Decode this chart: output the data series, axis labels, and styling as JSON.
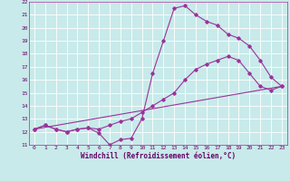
{
  "xlabel": "Windchill (Refroidissement éolien,°C)",
  "bg_color": "#c8eaea",
  "grid_color": "#ffffff",
  "line_color": "#993399",
  "xlim": [
    -0.5,
    23.5
  ],
  "ylim": [
    11,
    22
  ],
  "xticks": [
    0,
    1,
    2,
    3,
    4,
    5,
    6,
    7,
    8,
    9,
    10,
    11,
    12,
    13,
    14,
    15,
    16,
    17,
    18,
    19,
    20,
    21,
    22,
    23
  ],
  "yticks": [
    11,
    12,
    13,
    14,
    15,
    16,
    17,
    18,
    19,
    20,
    21,
    22
  ],
  "line1_x": [
    0,
    1,
    2,
    3,
    4,
    5,
    6,
    7,
    8,
    9,
    10,
    11,
    12,
    13,
    14,
    15,
    16,
    17,
    18,
    19,
    20,
    21,
    22,
    23
  ],
  "line1_y": [
    12.2,
    12.5,
    12.2,
    12.0,
    12.2,
    12.3,
    11.9,
    11.0,
    11.4,
    11.5,
    13.0,
    16.5,
    19.0,
    21.5,
    21.7,
    21.0,
    20.5,
    20.2,
    19.5,
    19.2,
    18.6,
    17.5,
    16.2,
    15.5
  ],
  "line2_x": [
    0,
    1,
    2,
    3,
    4,
    5,
    6,
    7,
    8,
    9,
    10,
    11,
    12,
    13,
    14,
    15,
    16,
    17,
    18,
    19,
    20,
    21,
    22,
    23
  ],
  "line2_y": [
    12.2,
    12.5,
    12.2,
    12.0,
    12.2,
    12.3,
    12.2,
    12.5,
    12.8,
    13.0,
    13.5,
    14.0,
    14.5,
    15.0,
    16.0,
    16.8,
    17.2,
    17.5,
    17.8,
    17.5,
    16.5,
    15.5,
    15.2,
    15.5
  ],
  "line3_x": [
    0,
    23
  ],
  "line3_y": [
    12.2,
    15.5
  ],
  "tick_fontsize": 4.5,
  "xlabel_fontsize": 5.5
}
